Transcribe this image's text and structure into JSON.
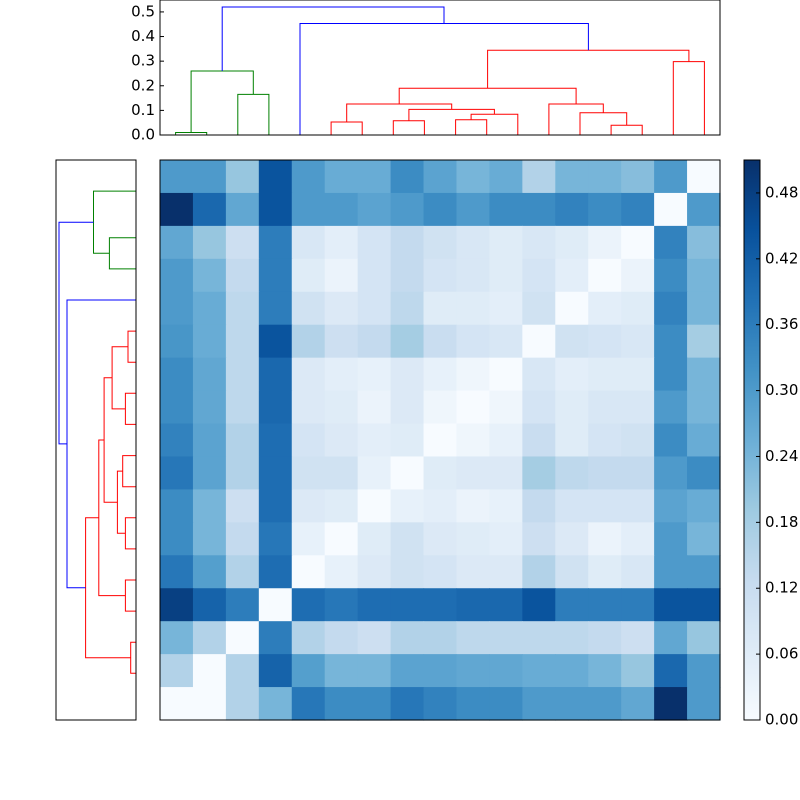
{
  "chart_data": [
    {
      "type": "dendrogram",
      "panel": "top",
      "orientation": "top",
      "ylim": [
        0,
        0.52
      ],
      "ytick_labels": [
        "0.0",
        "0.1",
        "0.2",
        "0.3",
        "0.4",
        "0.5"
      ],
      "links": [
        {
          "x": [
            0.5,
            0.5,
            1.5,
            1.5
          ],
          "y": [
            0.0,
            0.01,
            0.01,
            0.0
          ],
          "color": "#008000"
        },
        {
          "x": [
            2.5,
            2.5,
            3.5,
            3.5
          ],
          "y": [
            0.0,
            0.165,
            0.165,
            0.0
          ],
          "color": "#008000"
        },
        {
          "x": [
            1.0,
            1.0,
            3.0,
            3.0
          ],
          "y": [
            0.01,
            0.26,
            0.26,
            0.165
          ],
          "color": "#008000"
        },
        {
          "x": [
            5.5,
            5.5,
            6.5,
            6.5
          ],
          "y": [
            0.0,
            0.053,
            0.053,
            0.0
          ],
          "color": "#ff0000"
        },
        {
          "x": [
            7.5,
            7.5,
            8.5,
            8.5
          ],
          "y": [
            0.0,
            0.058,
            0.058,
            0.0
          ],
          "color": "#ff0000"
        },
        {
          "x": [
            9.5,
            9.5,
            10.5,
            10.5
          ],
          "y": [
            0.0,
            0.062,
            0.062,
            0.0
          ],
          "color": "#ff0000"
        },
        {
          "x": [
            10.0,
            10.0,
            11.5,
            11.5
          ],
          "y": [
            0.062,
            0.084,
            0.084,
            0.0
          ],
          "color": "#ff0000"
        },
        {
          "x": [
            8.0,
            8.0,
            10.75,
            10.75
          ],
          "y": [
            0.058,
            0.104,
            0.104,
            0.084
          ],
          "color": "#ff0000"
        },
        {
          "x": [
            6.0,
            6.0,
            9.375,
            9.375
          ],
          "y": [
            0.053,
            0.126,
            0.126,
            0.104
          ],
          "color": "#ff0000"
        },
        {
          "x": [
            14.5,
            14.5,
            15.5,
            15.5
          ],
          "y": [
            0.0,
            0.04,
            0.04,
            0.0
          ],
          "color": "#ff0000"
        },
        {
          "x": [
            13.5,
            13.5,
            15.0,
            15.0
          ],
          "y": [
            0.0,
            0.09,
            0.09,
            0.04
          ],
          "color": "#ff0000"
        },
        {
          "x": [
            12.5,
            12.5,
            14.25,
            14.25
          ],
          "y": [
            0.0,
            0.126,
            0.126,
            0.09
          ],
          "color": "#ff0000"
        },
        {
          "x": [
            7.6875,
            7.6875,
            13.375,
            13.375
          ],
          "y": [
            0.126,
            0.19,
            0.19,
            0.126
          ],
          "color": "#ff0000"
        },
        {
          "x": [
            16.5,
            16.5,
            17.5,
            17.5
          ],
          "y": [
            0.0,
            0.298,
            0.298,
            0.0
          ],
          "color": "#ff0000"
        },
        {
          "x": [
            10.53,
            10.53,
            17.0,
            17.0
          ],
          "y": [
            0.19,
            0.344,
            0.344,
            0.298
          ],
          "color": "#ff0000"
        },
        {
          "x": [
            4.5,
            4.5,
            13.77,
            13.77
          ],
          "y": [
            0.0,
            0.453,
            0.453,
            0.344
          ],
          "color": "#0000ff"
        },
        {
          "x": [
            2.0,
            2.0,
            9.13,
            9.13
          ],
          "y": [
            0.26,
            0.52,
            0.52,
            0.453
          ],
          "color": "#0000ff"
        }
      ]
    },
    {
      "type": "dendrogram",
      "panel": "left",
      "orientation": "left",
      "links": [
        {
          "x": [
            0.5,
            0.5,
            1.5,
            1.5
          ],
          "y": [
            0.0,
            0.0,
            0.0,
            0.0
          ],
          "color": "#008000"
        },
        {
          "x": [
            2.5,
            2.5,
            3.5,
            3.5
          ],
          "y": [
            0.0,
            0.1,
            0.1,
            0.0
          ],
          "color": "#008000"
        },
        {
          "x": [
            1.0,
            1.0,
            3.0,
            3.0
          ],
          "y": [
            0.0,
            0.16,
            0.16,
            0.1
          ],
          "color": "#008000"
        },
        {
          "x": [
            5.5,
            5.5,
            6.5,
            6.5
          ],
          "y": [
            0.0,
            0.03,
            0.03,
            0.0
          ],
          "color": "#ff0000"
        },
        {
          "x": [
            7.5,
            7.5,
            8.5,
            8.5
          ],
          "y": [
            0.0,
            0.04,
            0.04,
            0.0
          ],
          "color": "#ff0000"
        },
        {
          "x": [
            6.0,
            6.0,
            8.0,
            8.0
          ],
          "y": [
            0.03,
            0.09,
            0.09,
            0.04
          ],
          "color": "#ff0000"
        },
        {
          "x": [
            9.5,
            9.5,
            10.5,
            10.5
          ],
          "y": [
            0.0,
            0.05,
            0.05,
            0.0
          ],
          "color": "#ff0000"
        },
        {
          "x": [
            11.5,
            11.5,
            12.5,
            12.5
          ],
          "y": [
            0.0,
            0.04,
            0.04,
            0.0
          ],
          "color": "#ff0000"
        },
        {
          "x": [
            10.0,
            10.0,
            12.0,
            12.0
          ],
          "y": [
            0.05,
            0.07,
            0.07,
            0.04
          ],
          "color": "#ff0000"
        },
        {
          "x": [
            7.0,
            7.0,
            11.0,
            11.0
          ],
          "y": [
            0.09,
            0.12,
            0.12,
            0.07
          ],
          "color": "#ff0000"
        },
        {
          "x": [
            13.5,
            13.5,
            14.5,
            14.5
          ],
          "y": [
            0.0,
            0.04,
            0.04,
            0.0
          ],
          "color": "#ff0000"
        },
        {
          "x": [
            9.0,
            9.0,
            14.0,
            14.0
          ],
          "y": [
            0.12,
            0.14,
            0.14,
            0.04
          ],
          "color": "#ff0000"
        },
        {
          "x": [
            15.5,
            15.5,
            16.5,
            16.5
          ],
          "y": [
            0.0,
            0.02,
            0.02,
            0.0
          ],
          "color": "#ff0000"
        },
        {
          "x": [
            11.5,
            11.5,
            16.0,
            16.0
          ],
          "y": [
            0.14,
            0.19,
            0.19,
            0.02
          ],
          "color": "#ff0000"
        },
        {
          "x": [
            4.5,
            4.5,
            13.75,
            13.75
          ],
          "y": [
            0.0,
            0.26,
            0.26,
            0.19
          ],
          "color": "#0000ff"
        },
        {
          "x": [
            2.0,
            2.0,
            9.125,
            9.125
          ],
          "y": [
            0.16,
            0.29,
            0.29,
            0.26
          ],
          "color": "#0000ff"
        }
      ]
    },
    {
      "type": "heatmap",
      "panel": "matrix",
      "colormap": "Blues",
      "vmin": 0.0,
      "vmax": 0.51,
      "colorbar_tick_labels": [
        "0.00",
        "0.06",
        "0.12",
        "0.18",
        "0.24",
        "0.30",
        "0.36",
        "0.42",
        "0.48"
      ],
      "colorbar_ticks": [
        0.0,
        0.06,
        0.12,
        0.18,
        0.24,
        0.3,
        0.36,
        0.42,
        0.48
      ],
      "values": [
        [
          0.3,
          0.3,
          0.2,
          0.44,
          0.3,
          0.26,
          0.26,
          0.33,
          0.28,
          0.24,
          0.26,
          0.16,
          0.24,
          0.24,
          0.22,
          0.3,
          0.0
        ],
        [
          0.51,
          0.4,
          0.27,
          0.44,
          0.3,
          0.3,
          0.28,
          0.3,
          0.33,
          0.3,
          0.33,
          0.33,
          0.35,
          0.33,
          0.35,
          0.0,
          0.3
        ],
        [
          0.27,
          0.2,
          0.11,
          0.36,
          0.08,
          0.05,
          0.09,
          0.13,
          0.1,
          0.08,
          0.06,
          0.08,
          0.06,
          0.03,
          0.0,
          0.35,
          0.22
        ],
        [
          0.3,
          0.24,
          0.13,
          0.36,
          0.06,
          0.03,
          0.09,
          0.13,
          0.09,
          0.08,
          0.06,
          0.09,
          0.05,
          0.0,
          0.03,
          0.33,
          0.24
        ],
        [
          0.3,
          0.26,
          0.14,
          0.36,
          0.1,
          0.07,
          0.09,
          0.14,
          0.06,
          0.06,
          0.05,
          0.1,
          0.0,
          0.05,
          0.06,
          0.35,
          0.24
        ],
        [
          0.31,
          0.26,
          0.14,
          0.44,
          0.16,
          0.11,
          0.13,
          0.18,
          0.12,
          0.09,
          0.08,
          0.0,
          0.1,
          0.09,
          0.08,
          0.33,
          0.18
        ],
        [
          0.33,
          0.27,
          0.14,
          0.4,
          0.07,
          0.05,
          0.04,
          0.07,
          0.04,
          0.02,
          0.0,
          0.08,
          0.05,
          0.06,
          0.06,
          0.33,
          0.24
        ],
        [
          0.33,
          0.27,
          0.14,
          0.4,
          0.07,
          0.06,
          0.03,
          0.07,
          0.02,
          0.0,
          0.02,
          0.09,
          0.06,
          0.08,
          0.08,
          0.3,
          0.24
        ],
        [
          0.35,
          0.28,
          0.16,
          0.39,
          0.09,
          0.07,
          0.05,
          0.06,
          0.0,
          0.02,
          0.04,
          0.12,
          0.06,
          0.09,
          0.1,
          0.33,
          0.26
        ],
        [
          0.37,
          0.28,
          0.16,
          0.39,
          0.1,
          0.1,
          0.04,
          0.0,
          0.06,
          0.07,
          0.07,
          0.18,
          0.14,
          0.13,
          0.13,
          0.3,
          0.33
        ],
        [
          0.33,
          0.24,
          0.11,
          0.39,
          0.07,
          0.06,
          0.0,
          0.04,
          0.05,
          0.03,
          0.04,
          0.13,
          0.09,
          0.09,
          0.09,
          0.28,
          0.26
        ],
        [
          0.33,
          0.24,
          0.13,
          0.37,
          0.04,
          0.0,
          0.06,
          0.1,
          0.07,
          0.06,
          0.05,
          0.11,
          0.07,
          0.03,
          0.05,
          0.3,
          0.24
        ],
        [
          0.37,
          0.29,
          0.16,
          0.39,
          0.0,
          0.04,
          0.07,
          0.1,
          0.09,
          0.07,
          0.07,
          0.16,
          0.1,
          0.06,
          0.08,
          0.3,
          0.3
        ],
        [
          0.48,
          0.41,
          0.36,
          0.0,
          0.39,
          0.37,
          0.39,
          0.39,
          0.39,
          0.4,
          0.4,
          0.44,
          0.36,
          0.36,
          0.36,
          0.44,
          0.44
        ],
        [
          0.24,
          0.16,
          0.0,
          0.36,
          0.16,
          0.13,
          0.11,
          0.16,
          0.16,
          0.14,
          0.14,
          0.14,
          0.14,
          0.13,
          0.11,
          0.27,
          0.2
        ],
        [
          0.16,
          0.0,
          0.16,
          0.41,
          0.29,
          0.24,
          0.24,
          0.28,
          0.28,
          0.27,
          0.27,
          0.26,
          0.26,
          0.24,
          0.2,
          0.4,
          0.3
        ],
        [
          0.0,
          0.0,
          0.16,
          0.24,
          0.37,
          0.33,
          0.33,
          0.37,
          0.35,
          0.33,
          0.33,
          0.3,
          0.3,
          0.3,
          0.27,
          0.51,
          0.3
        ]
      ]
    }
  ]
}
